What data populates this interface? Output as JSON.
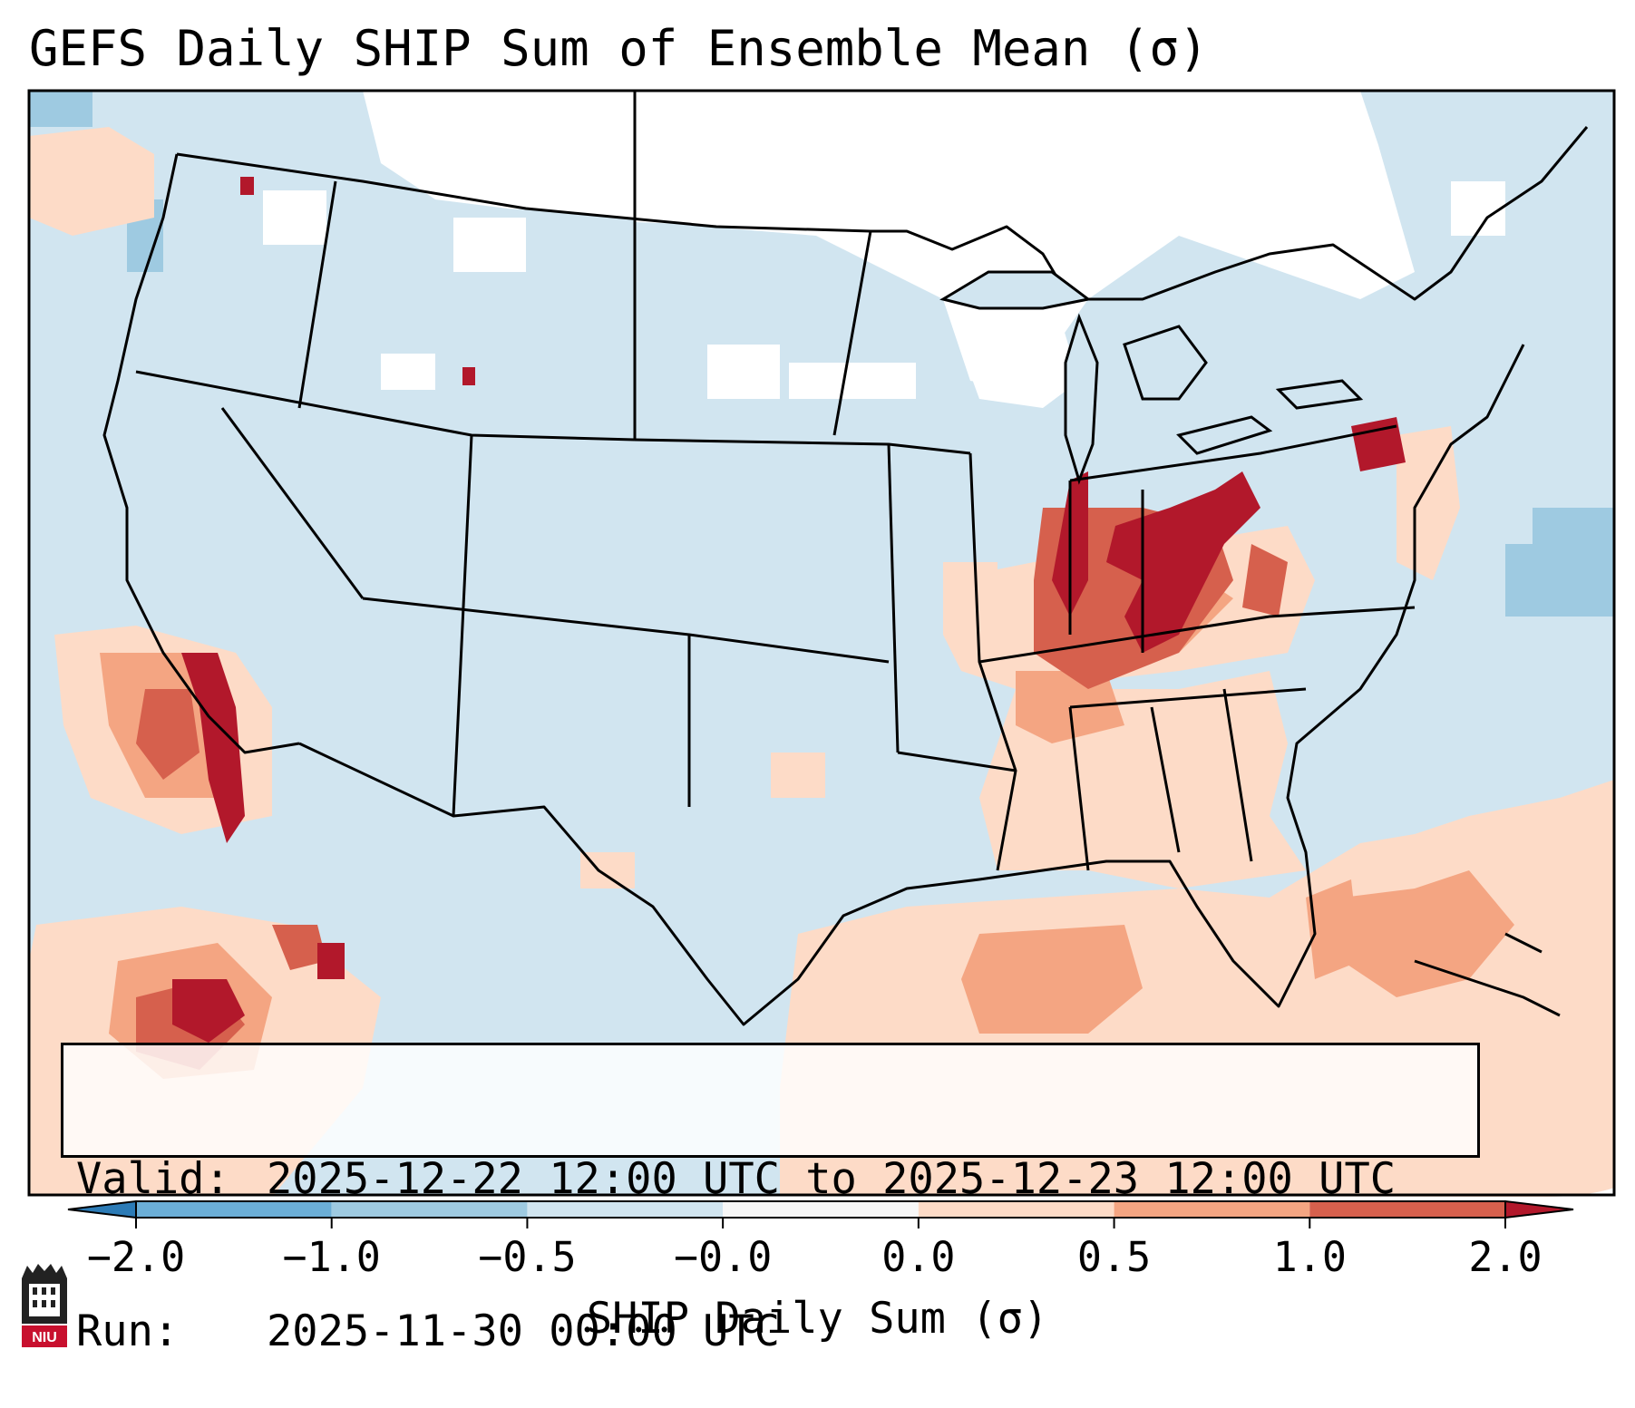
{
  "title": "GEFS Daily SHIP Sum of Ensemble Mean (σ)",
  "info": {
    "valid_label": "Valid:",
    "valid_value": "2025-12-22 12:00 UTC to 2025-12-23 12:00 UTC",
    "run_label": "Run:",
    "run_value": "2025-11-30 00:00 UTC"
  },
  "colorbar": {
    "label": "SHIP Daily Sum (σ)",
    "ticks": [
      "−2.0",
      "−1.0",
      "−0.5",
      "−0.0",
      "0.0",
      "0.5",
      "1.0",
      "2.0"
    ],
    "colors": [
      "#2c7bb6",
      "#6baed6",
      "#9ecae1",
      "#d1e5f0",
      "#f7f7f7",
      "#fddbc7",
      "#f4a582",
      "#d6604d",
      "#b2182b"
    ]
  },
  "map": {
    "background_color": "#d1e5f0",
    "region": "Contiguous United States",
    "field_colors": {
      "neutral": "#ffffff",
      "slight_neg": "#d1e5f0",
      "neg": "#9ecae1",
      "slight_pos": "#fddbc7",
      "pos": "#f4a582",
      "strong_pos": "#d6604d",
      "very_strong_pos": "#b2182b"
    }
  },
  "logo": {
    "text": "NIU",
    "color": "#c8102e"
  }
}
